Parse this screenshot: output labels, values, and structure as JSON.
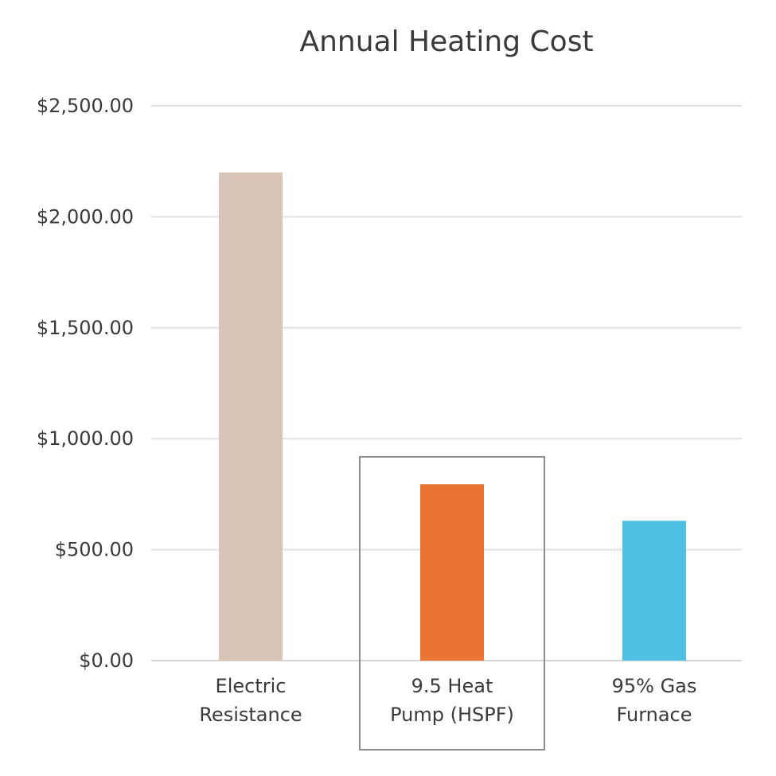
{
  "chart_data": {
    "type": "bar",
    "title": "Annual Heating Cost",
    "xlabel": "",
    "ylabel": "",
    "categories": [
      [
        "Electric",
        "Resistance"
      ],
      [
        "9.5 Heat",
        "Pump (HSPF)"
      ],
      [
        "95% Gas",
        "Furnace"
      ]
    ],
    "values": [
      2200,
      795,
      630
    ],
    "bar_colors": [
      "#d9c5b8",
      "#e97334",
      "#4fc1e3"
    ],
    "ylim": [
      0,
      2500
    ],
    "y_ticks": [
      0,
      500,
      1000,
      1500,
      2000,
      2500
    ],
    "y_tick_labels": [
      "$0.00",
      "$500.00",
      "$1,000.00",
      "$1,500.00",
      "$2,000.00",
      "$2,500.00"
    ],
    "grid": true,
    "legend": "none",
    "highlighted_category_index": 1
  }
}
